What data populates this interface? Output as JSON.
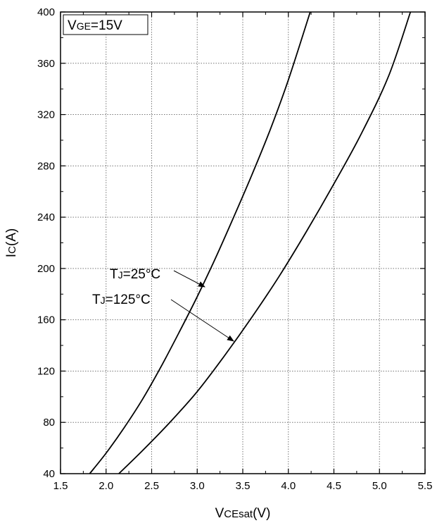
{
  "chart_data": {
    "type": "line",
    "title": "",
    "xlabel": {
      "main": "V",
      "sub": "CEsat",
      "unit": "(V)"
    },
    "ylabel": {
      "main": "I",
      "sub": "C",
      "unit": "(A)"
    },
    "xlim": [
      1.5,
      5.5
    ],
    "ylim": [
      40,
      400
    ],
    "xticks": [
      1.5,
      2.0,
      2.5,
      3.0,
      3.5,
      4.0,
      4.5,
      5.0,
      5.5
    ],
    "xtick_labels": [
      "1.5",
      "2.0",
      "2.5",
      "3.0",
      "3.5",
      "4.0",
      "4.5",
      "5.0",
      "5.5"
    ],
    "yticks": [
      40,
      80,
      120,
      160,
      200,
      240,
      280,
      320,
      360,
      400
    ],
    "ytick_labels": [
      "40",
      "80",
      "120",
      "160",
      "200",
      "240",
      "280",
      "320",
      "360",
      "400"
    ],
    "grid": true,
    "legend_box": {
      "main": "V",
      "sub": "GE",
      "value": "=15V"
    },
    "series": [
      {
        "name": "TJ=25°C",
        "label_main": "T",
        "label_sub": "J",
        "label_value": "=25°C",
        "color": "#000000",
        "x": [
          1.82,
          2.0,
          2.2,
          2.4,
          2.6,
          2.8,
          3.0,
          3.2,
          3.4,
          3.6,
          3.8,
          4.0,
          4.24
        ],
        "y": [
          40,
          56,
          76,
          98,
          123,
          150,
          178,
          208,
          240,
          273,
          308,
          347,
          400
        ]
      },
      {
        "name": "TJ=125°C",
        "label_main": "T",
        "label_sub": "J",
        "label_value": "=125°C",
        "color": "#000000",
        "x": [
          2.14,
          2.4,
          2.7,
          3.0,
          3.3,
          3.6,
          3.9,
          4.2,
          4.5,
          4.8,
          5.1,
          5.34
        ],
        "y": [
          40,
          58,
          80,
          104,
          132,
          162,
          194,
          229,
          266,
          305,
          350,
          400
        ]
      }
    ]
  }
}
